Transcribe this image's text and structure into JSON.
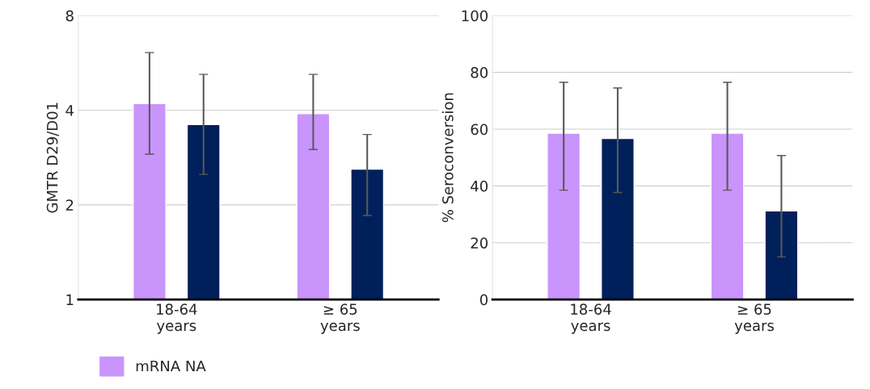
{
  "chart_data": [
    {
      "type": "bar",
      "ylabel": "GMTR D29/D01",
      "categories": [
        "18-64\nyears",
        "≥ 65\nyears"
      ],
      "log": "y",
      "ylim": [
        1,
        8
      ],
      "yticks": [
        1,
        2,
        4,
        8
      ],
      "grid": "y",
      "legend": "bottom left",
      "series": [
        {
          "name": "mRNA NA",
          "color": "#c994fc",
          "values": [
            4.2,
            3.9
          ],
          "errors": [
            [
              2.9,
              6.1
            ],
            [
              3.0,
              5.2
            ]
          ]
        },
        {
          "color": "#00205b",
          "values": [
            3.6,
            2.6
          ],
          "errors": [
            [
              2.5,
              5.2
            ],
            [
              1.85,
              3.35
            ]
          ]
        }
      ]
    },
    {
      "type": "bar",
      "ylabel": "% Seroconversion",
      "categories": [
        "18-64\nyears",
        "≥ 65\nyears"
      ],
      "ylim": [
        0,
        100
      ],
      "yticks": [
        0,
        20,
        40,
        60,
        80,
        100
      ],
      "grid": "y",
      "series": [
        {
          "color": "#c994fc",
          "values": [
            58.6,
            58.6
          ],
          "errors": [
            [
              38.5,
              76.5
            ],
            [
              38.5,
              76.5
            ]
          ]
        },
        {
          "color": "#00205b",
          "values": [
            56.7,
            31.2
          ],
          "errors": [
            [
              37.7,
              74.5
            ],
            [
              15.0,
              50.7
            ]
          ]
        }
      ]
    }
  ]
}
